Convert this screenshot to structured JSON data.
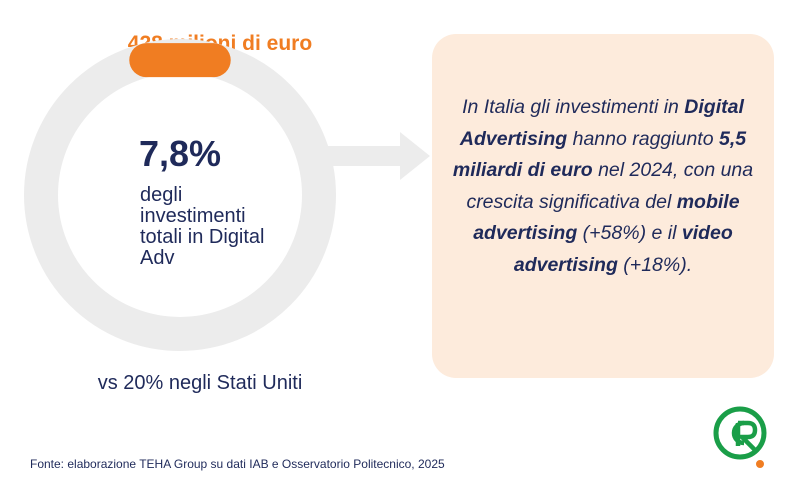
{
  "headline": "428 milioni di euro",
  "gauge": {
    "share_percent": 7.8
  },
  "percentage": "7,8%",
  "percentage_desc": "degli investimenti totali in Digital Adv",
  "comparison": "vs 20% negli Stati Uniti",
  "card": {
    "t1": "In Italia gli investimenti in ",
    "b1": "Digital Advertising",
    "t2": " hanno raggiunto ",
    "b2": "5,5 miliardi di euro",
    "t3": " nel 2024, con una crescita significativa del ",
    "b3": "mobile advertising",
    "t4": " (+58%) e il ",
    "b4": "video advertising",
    "t5": " (+18%)."
  },
  "source": "Fonte: elaborazione TEHA Group su dati IAB e Osservatorio Politecnico, 2025",
  "colors": {
    "navy": "#1f2a5a",
    "orange": "#f07d22",
    "ring_gray": "#ececec",
    "card_bg": "#fdebdc",
    "logo_green": "#1a9e48"
  },
  "icons": {
    "arrow": "arrow-right-icon",
    "logo": "cr-logo-icon"
  }
}
